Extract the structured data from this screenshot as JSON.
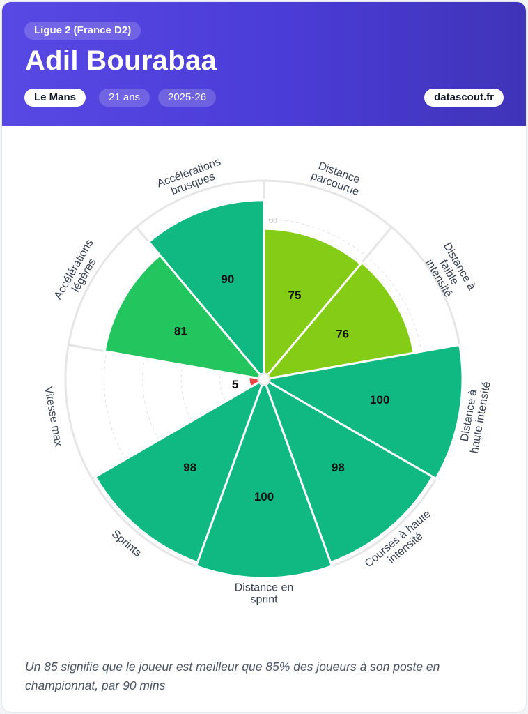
{
  "header": {
    "league": "Ligue 2 (France D2)",
    "player_name": "Adil Bourabaa",
    "team": "Le Mans",
    "age": "21 ans",
    "season": "2025-26",
    "brand": "datascout.fr"
  },
  "footnote": "Un 85 signifie que le joueur est meilleur que 85% des joueurs à son poste en championnat, par 90 mins",
  "chart_data": {
    "type": "polar-bar",
    "title": "",
    "range": [
      0,
      100
    ],
    "reference_ring_label": "80",
    "reference_ring_value": 80,
    "grid": true,
    "categories": [
      "Distance parcourue",
      "Distance à faible intensité",
      "Distance à haute intensité",
      "Courses à haute intensité",
      "Distance en sprint",
      "Sprints",
      "Vitesse max",
      "Accélérations légères",
      "Accélérations brusques"
    ],
    "label_lines": [
      [
        "Distance",
        "parcourue"
      ],
      [
        "Distance à",
        "faible",
        "intensité"
      ],
      [
        "Distance à",
        "haute intensité"
      ],
      [
        "Courses à haute",
        "intensité"
      ],
      [
        "Distance en",
        "sprint"
      ],
      [
        "Sprints"
      ],
      [
        "Vitesse max"
      ],
      [
        "Accélérations",
        "légères"
      ],
      [
        "Accélérations",
        "brusques"
      ]
    ],
    "values": [
      75,
      76,
      100,
      98,
      100,
      98,
      5,
      81,
      90
    ],
    "colors": [
      "#84cc16",
      "#84cc16",
      "#10b981",
      "#10b981",
      "#10b981",
      "#10b981",
      "#ef4444",
      "#22c55e",
      "#10b981"
    ]
  }
}
